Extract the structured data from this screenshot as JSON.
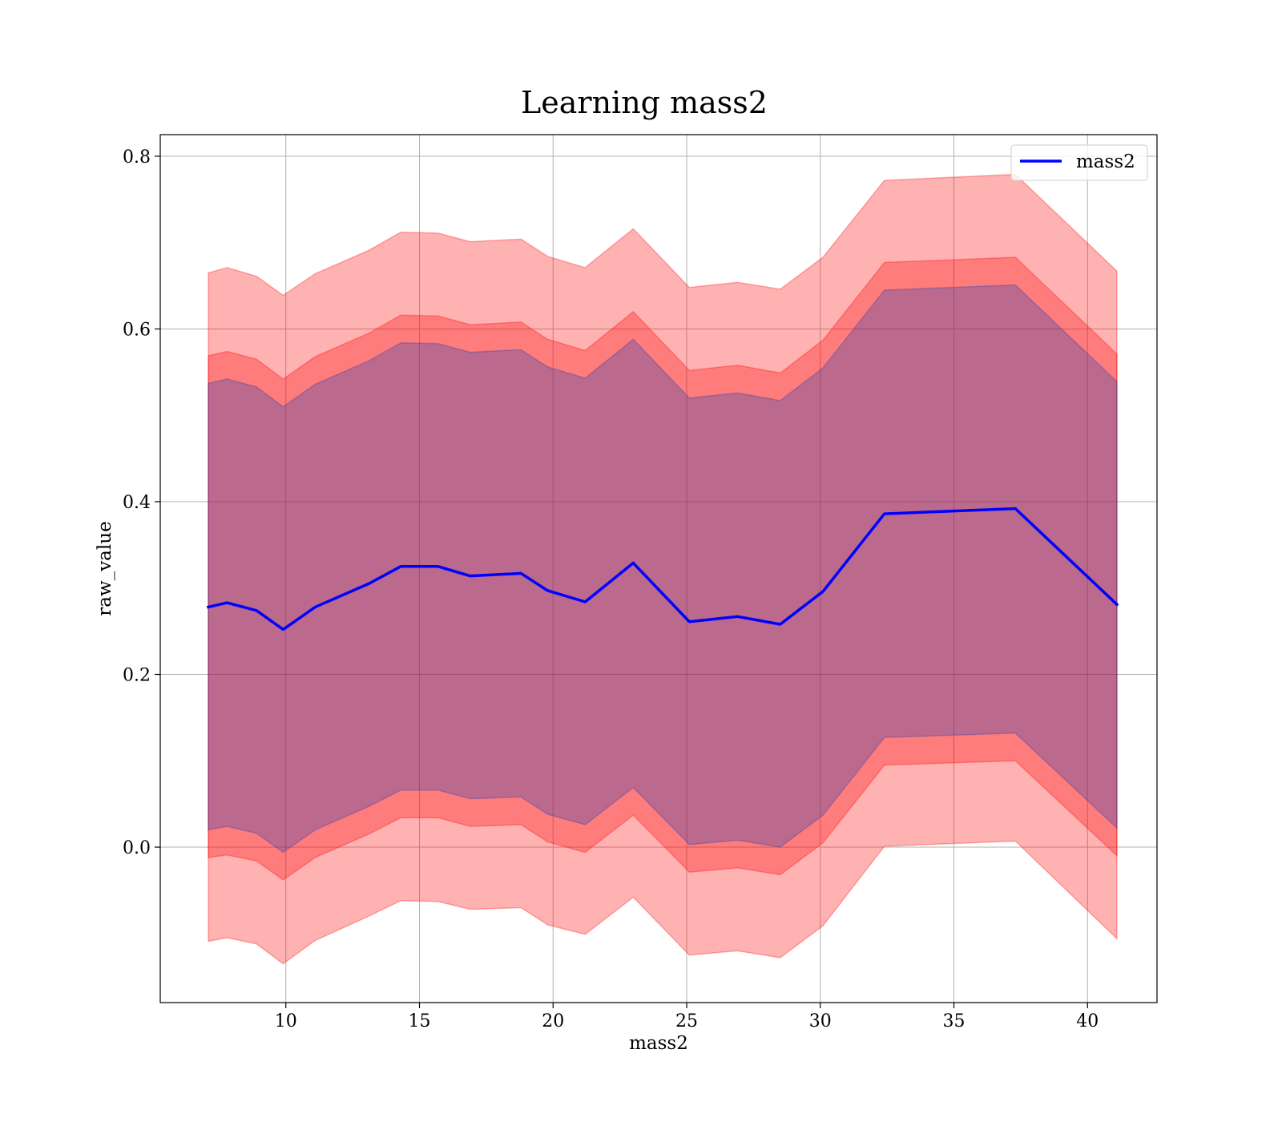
{
  "chart_data": {
    "type": "line",
    "title": "Learning mass2",
    "xlabel": "mass2",
    "ylabel": "raw_value",
    "xlim": [
      5.3,
      42.6
    ],
    "ylim": [
      -0.18,
      0.825
    ],
    "xticks": [
      10,
      15,
      20,
      25,
      30,
      35,
      40
    ],
    "yticks": [
      0.0,
      0.2,
      0.4,
      0.6,
      0.8
    ],
    "xtick_labels": [
      "10",
      "15",
      "20",
      "25",
      "30",
      "35",
      "40"
    ],
    "ytick_labels": [
      "0.0",
      "0.2",
      "0.4",
      "0.6",
      "0.8"
    ],
    "grid": true,
    "legend": {
      "placement": "top-right",
      "entries": [
        "mass2"
      ]
    },
    "x": [
      7.1,
      7.8,
      8.9,
      9.9,
      11.1,
      13.1,
      14.3,
      15.7,
      16.9,
      18.8,
      19.8,
      21.2,
      23.0,
      25.1,
      26.9,
      28.5,
      30.1,
      32.4,
      37.3,
      41.1
    ],
    "series": [
      {
        "name": "mass2",
        "color": "#0000ff",
        "y": [
          0.278,
          0.283,
          0.274,
          0.252,
          0.278,
          0.305,
          0.325,
          0.325,
          0.314,
          0.317,
          0.297,
          0.284,
          0.329,
          0.261,
          0.267,
          0.258,
          0.296,
          0.386,
          0.392,
          0.281
        ]
      }
    ],
    "bands": [
      {
        "fill": "#ff0000",
        "opacity": 0.3,
        "lower": [
          -0.109,
          -0.105,
          -0.112,
          -0.135,
          -0.108,
          -0.08,
          -0.062,
          -0.063,
          -0.072,
          -0.07,
          -0.09,
          -0.101,
          -0.058,
          -0.125,
          -0.12,
          -0.128,
          -0.091,
          0.001,
          0.007,
          -0.106
        ],
        "upper": [
          0.665,
          0.671,
          0.661,
          0.639,
          0.664,
          0.691,
          0.712,
          0.711,
          0.701,
          0.704,
          0.684,
          0.671,
          0.716,
          0.648,
          0.654,
          0.646,
          0.683,
          0.772,
          0.779,
          0.667
        ]
      },
      {
        "fill": "#ff0000",
        "opacity": 0.3,
        "lower": [
          -0.012,
          -0.009,
          -0.016,
          -0.038,
          -0.012,
          0.015,
          0.034,
          0.034,
          0.024,
          0.026,
          0.006,
          -0.006,
          0.037,
          -0.029,
          -0.024,
          -0.032,
          0.005,
          0.095,
          0.1,
          -0.01
        ],
        "upper": [
          0.569,
          0.574,
          0.565,
          0.542,
          0.568,
          0.595,
          0.616,
          0.615,
          0.605,
          0.608,
          0.588,
          0.575,
          0.62,
          0.552,
          0.558,
          0.549,
          0.587,
          0.677,
          0.683,
          0.571
        ]
      },
      {
        "fill": "#1f3fb4",
        "opacity": 0.3,
        "lower": [
          0.02,
          0.024,
          0.016,
          -0.006,
          0.02,
          0.047,
          0.066,
          0.066,
          0.056,
          0.058,
          0.038,
          0.026,
          0.069,
          0.003,
          0.008,
          0.0,
          0.037,
          0.127,
          0.132,
          0.022
        ],
        "upper": [
          0.537,
          0.542,
          0.533,
          0.51,
          0.536,
          0.563,
          0.584,
          0.583,
          0.573,
          0.576,
          0.556,
          0.543,
          0.588,
          0.52,
          0.526,
          0.517,
          0.555,
          0.645,
          0.651,
          0.539
        ]
      }
    ]
  }
}
